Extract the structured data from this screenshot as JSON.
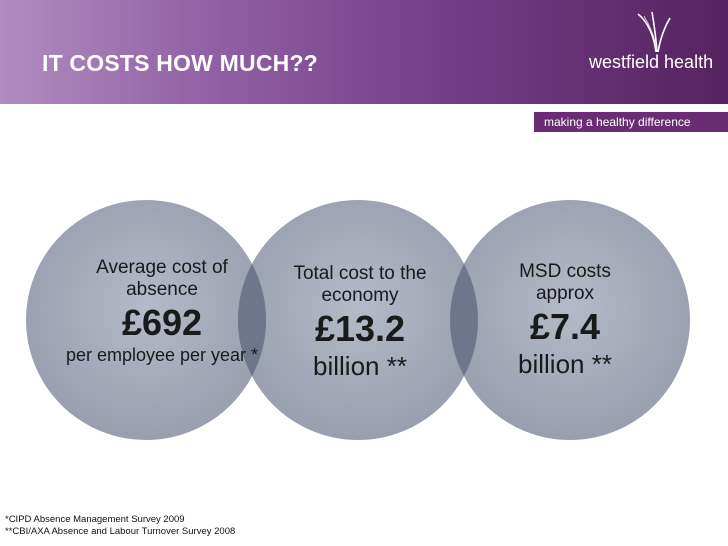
{
  "slide": {
    "title": "IT COSTS HOW MUCH??",
    "logo_text": "westfield health",
    "tagline": "making a healthy difference"
  },
  "circles": [
    {
      "label": "Average cost of absence",
      "value": "£692",
      "subtext": "per employee per year *"
    },
    {
      "label": "Total cost to the economy",
      "value": "£13.2",
      "subtext": "billion **"
    },
    {
      "label": "MSD costs approx",
      "value": "£7.4",
      "subtext": "billion **"
    }
  ],
  "footnotes": [
    "*CIPD Absence Management Survey 2009",
    "**CBI/AXA Absence and Labour Turnover Survey 2008"
  ],
  "colors": {
    "header_start": "#b08cc0",
    "header_end": "#55235f",
    "tagline_bg": "#6a2d73",
    "circle_fill": "#a4a9b8",
    "overlap_fill": "#737a8f"
  }
}
